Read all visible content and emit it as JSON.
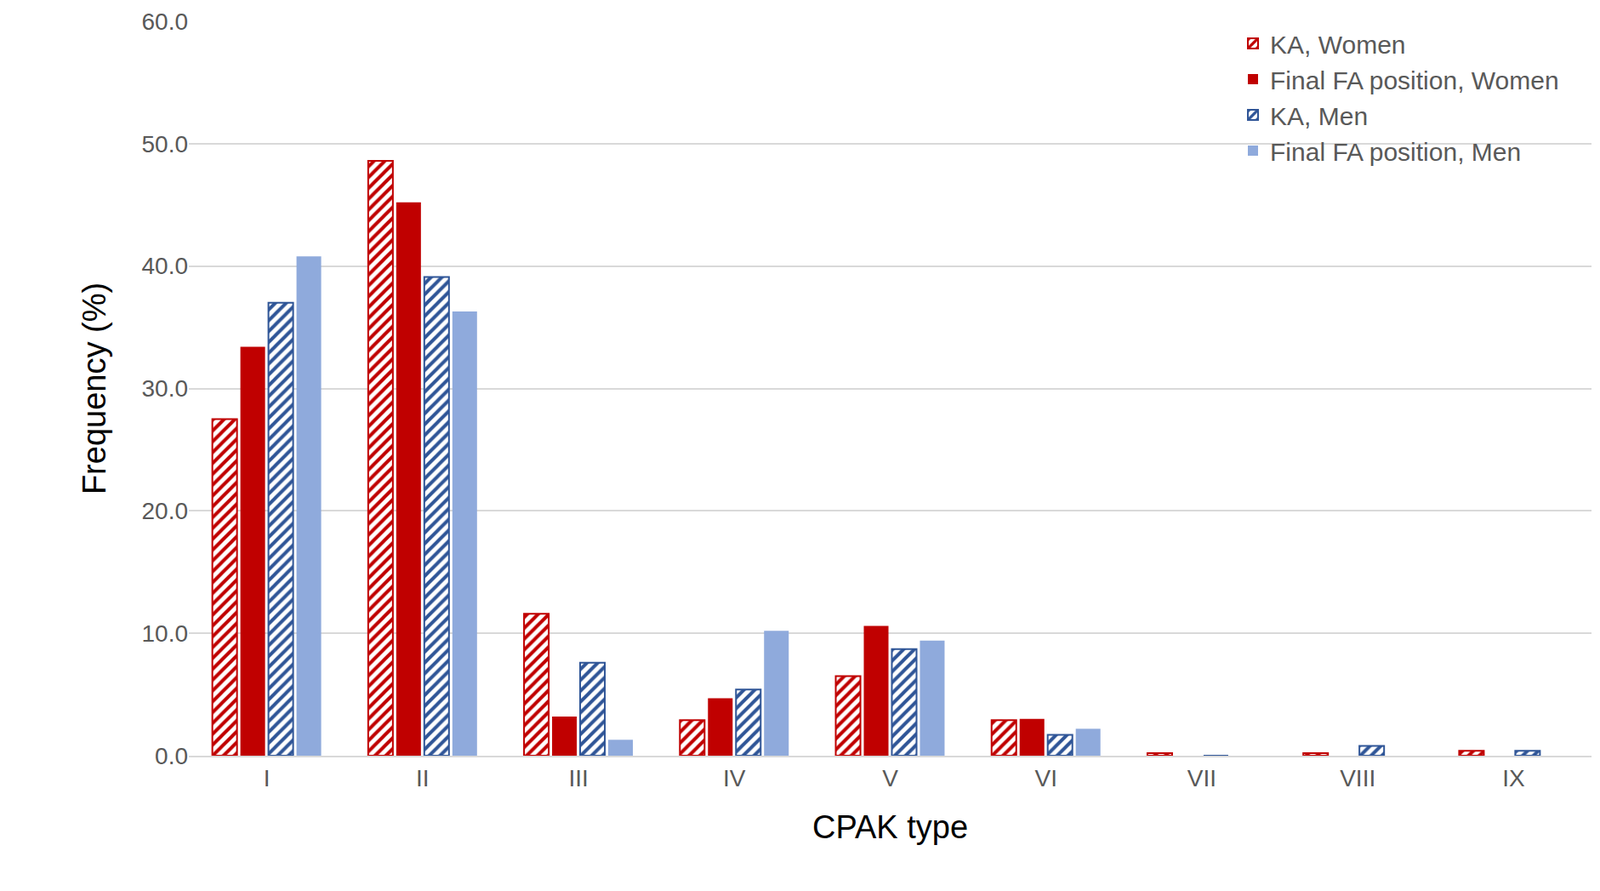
{
  "chart_data": {
    "type": "bar",
    "x_label": "CPAK type",
    "y_label": "Frequency (%)",
    "categories": [
      "I",
      "II",
      "III",
      "IV",
      "V",
      "VI",
      "VII",
      "VIII",
      "IX"
    ],
    "series": [
      {
        "name": "KA, Women",
        "color": "#c00000",
        "marker": "hatched",
        "values": [
          27.5,
          48.6,
          11.6,
          2.9,
          6.5,
          2.9,
          0.2,
          0.2,
          0.4
        ]
      },
      {
        "name": "Final FA position, Women",
        "color": "#c00000",
        "marker": "solid",
        "values": [
          33.4,
          45.2,
          3.2,
          4.7,
          10.6,
          3.0,
          0,
          0,
          0
        ]
      },
      {
        "name": "KA, Men",
        "color": "#2f5597",
        "marker": "hatched",
        "values": [
          37.0,
          39.1,
          7.6,
          5.4,
          8.7,
          1.7,
          0,
          0.8,
          0.4
        ]
      },
      {
        "name": "Final FA position, Men",
        "color": "#8faadc",
        "marker": "solid",
        "values": [
          40.8,
          36.3,
          1.3,
          10.2,
          9.4,
          2.2,
          0,
          0,
          0
        ]
      }
    ],
    "ylim": [
      0,
      60
    ],
    "yticks": [
      {
        "value": 0,
        "label": "0.0"
      },
      {
        "value": 10,
        "label": "10.0"
      },
      {
        "value": 20,
        "label": "20.0"
      },
      {
        "value": 30,
        "label": "30.0"
      },
      {
        "value": 40,
        "label": "40.0"
      },
      {
        "value": 50,
        "label": "50.0"
      },
      {
        "value": 60,
        "label": "60.0"
      }
    ],
    "grid": true,
    "legend": "top-right"
  }
}
